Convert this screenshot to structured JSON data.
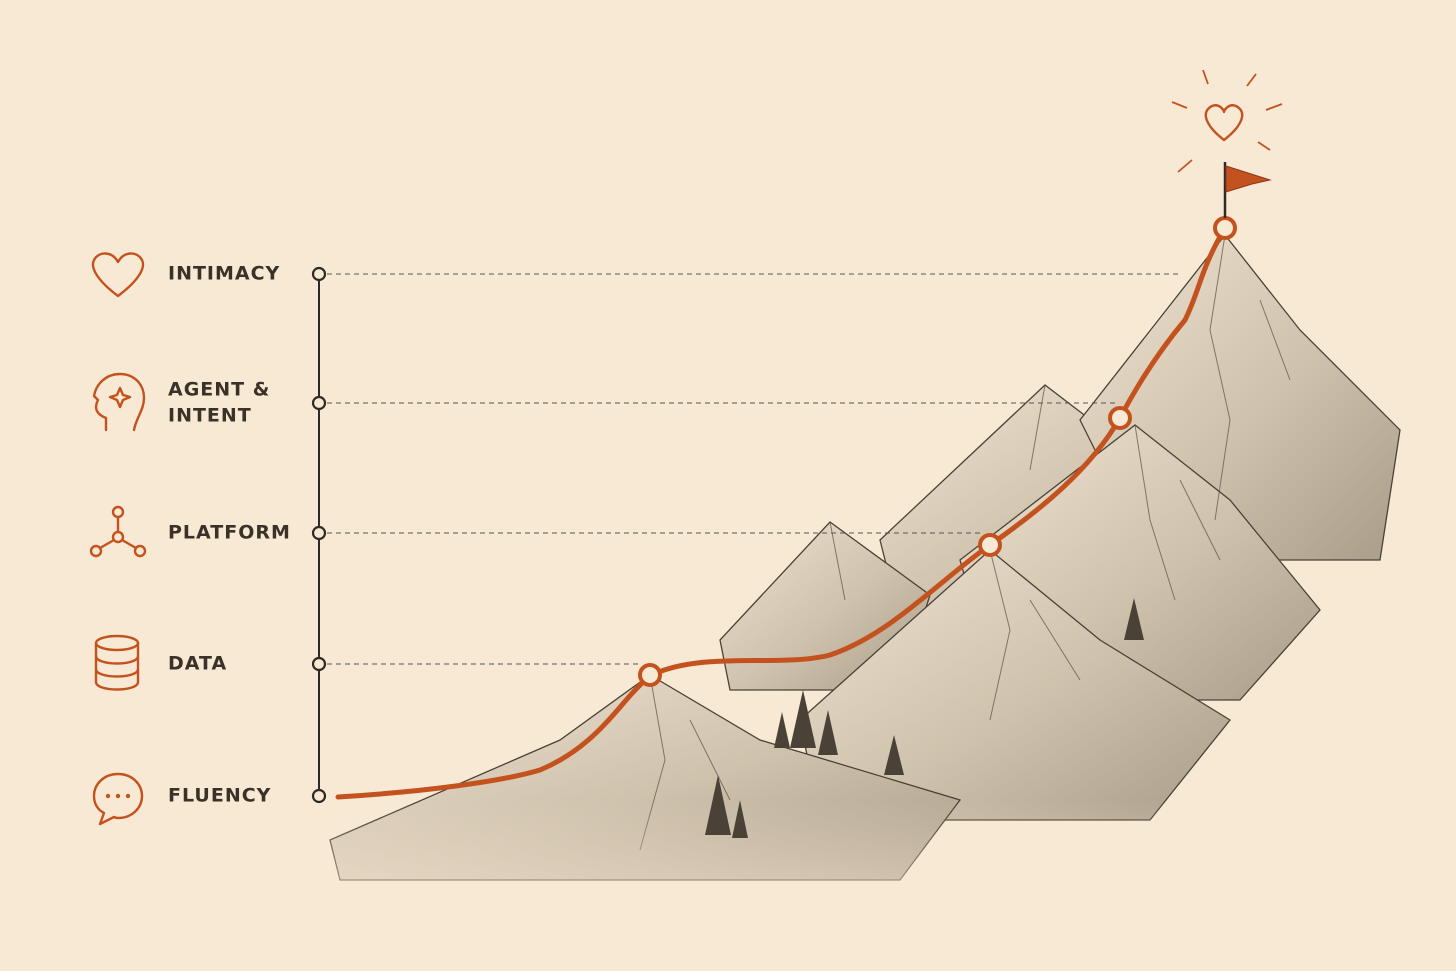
{
  "levels": [
    {
      "lines": [
        "INTIMACY"
      ]
    },
    {
      "lines": [
        "AGENT &",
        "INTENT"
      ]
    },
    {
      "lines": [
        "PLATFORM"
      ]
    },
    {
      "lines": [
        "DATA"
      ]
    },
    {
      "lines": [
        "FLUENCY"
      ]
    }
  ]
}
